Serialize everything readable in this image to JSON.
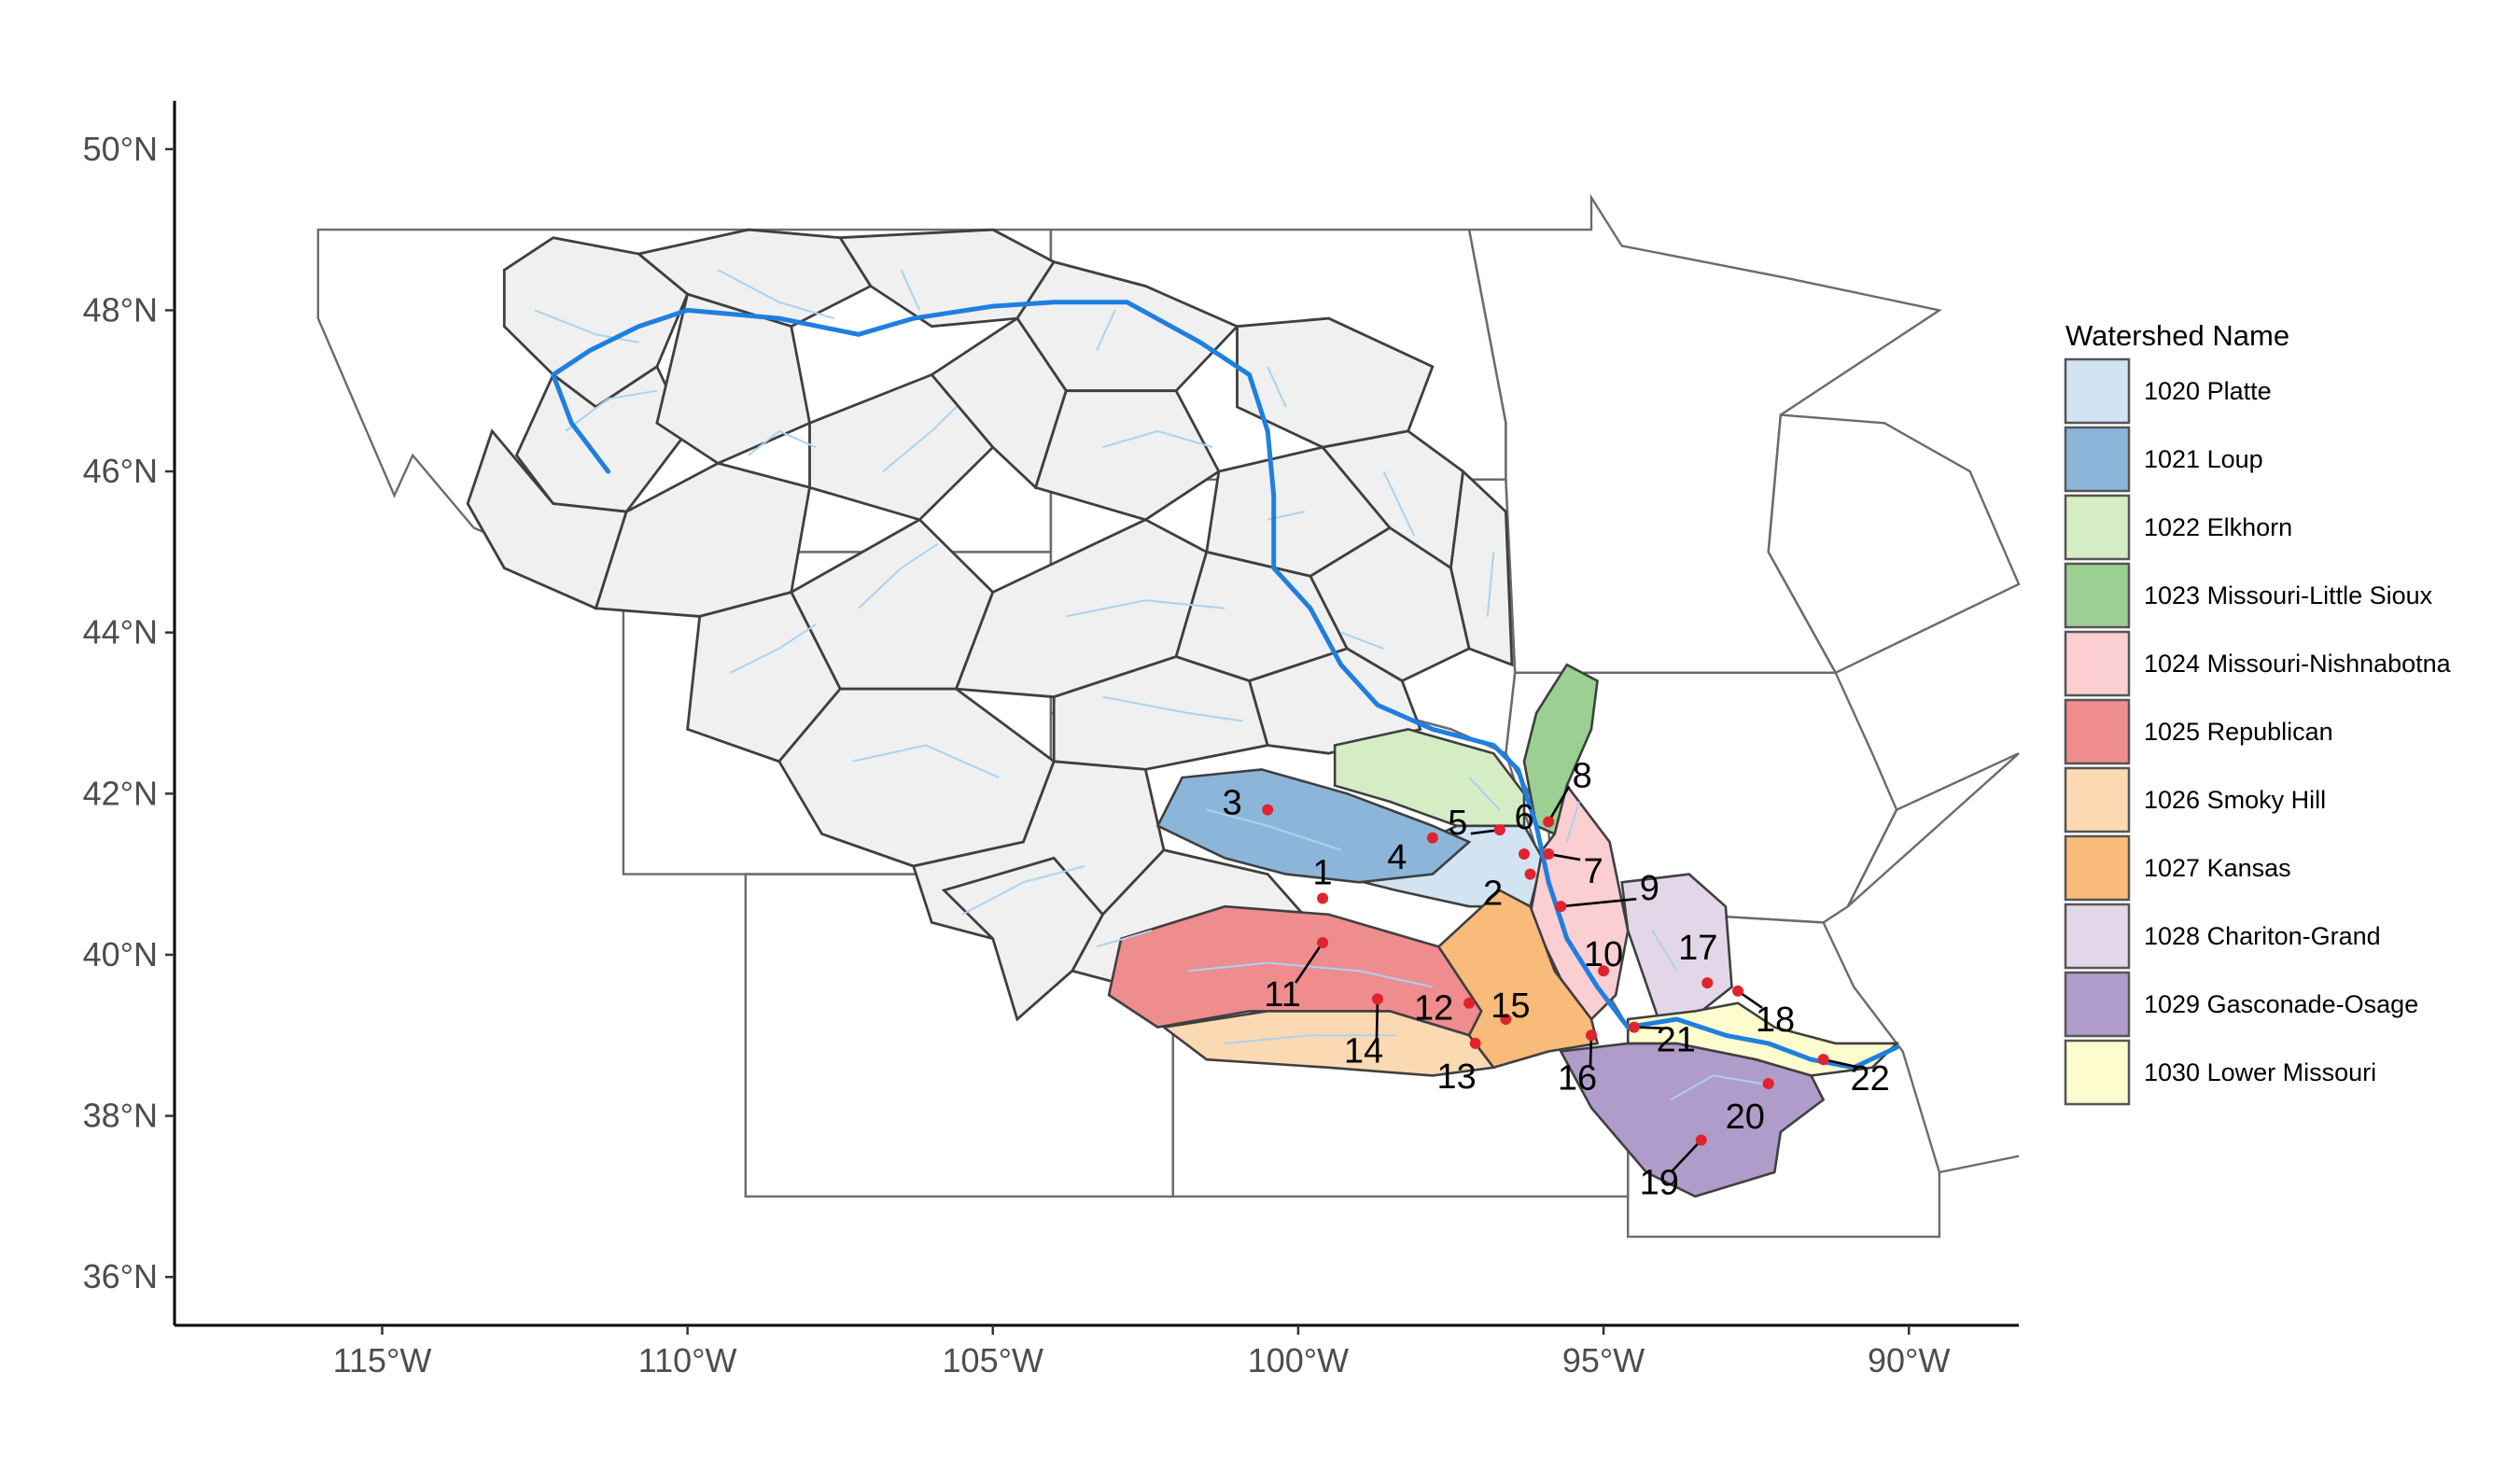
{
  "axes": {
    "lat_ticks": [
      "50°N",
      "48°N",
      "46°N",
      "44°N",
      "42°N",
      "40°N",
      "38°N",
      "36°N"
    ],
    "lon_ticks": [
      "115°W",
      "110°W",
      "105°W",
      "100°W",
      "95°W",
      "90°W"
    ],
    "lat_range": [
      35.4,
      50.6
    ],
    "lon_range": [
      -118.4,
      -88.2
    ]
  },
  "legend": {
    "title": "Watershed Name",
    "entries": [
      {
        "label": "1020 Platte",
        "color": "#d2e4f1"
      },
      {
        "label": "1021 Loup",
        "color": "#8bb6d9"
      },
      {
        "label": "1022 Elkhorn",
        "color": "#d5edc4"
      },
      {
        "label": "1023 Missouri-Little Sioux",
        "color": "#9ccf92"
      },
      {
        "label": "1024 Missouri-Nishnabotna",
        "color": "#fbcfd2"
      },
      {
        "label": "1025 Republican",
        "color": "#ee8c8e"
      },
      {
        "label": "1026 Smoky Hill",
        "color": "#fbd9b3"
      },
      {
        "label": "1027 Kansas",
        "color": "#f9bb7a"
      },
      {
        "label": "1028 Chariton-Grand",
        "color": "#e3d6e8"
      },
      {
        "label": "1029 Gasconade-Osage",
        "color": "#b09ccb"
      },
      {
        "label": "1030 Lower Missouri",
        "color": "#fdfccf"
      }
    ]
  },
  "sites": [
    {
      "id": "1",
      "lon": -99.6,
      "lat": 40.7
    },
    {
      "id": "2",
      "lon": -96.2,
      "lat": 41.0
    },
    {
      "id": "3",
      "lon": -100.5,
      "lat": 41.8
    },
    {
      "id": "4",
      "lon": -97.8,
      "lat": 41.45
    },
    {
      "id": "5",
      "lon": -96.7,
      "lat": 41.55
    },
    {
      "id": "6",
      "lon": -96.3,
      "lat": 41.25
    },
    {
      "id": "7",
      "lon": -95.9,
      "lat": 41.25
    },
    {
      "id": "8",
      "lon": -95.9,
      "lat": 41.65
    },
    {
      "id": "9",
      "lon": -95.7,
      "lat": 40.6
    },
    {
      "id": "10",
      "lon": -95.0,
      "lat": 39.8
    },
    {
      "id": "11",
      "lon": -99.6,
      "lat": 40.15
    },
    {
      "id": "12",
      "lon": -97.2,
      "lat": 39.4
    },
    {
      "id": "13",
      "lon": -97.1,
      "lat": 38.9
    },
    {
      "id": "14",
      "lon": -98.7,
      "lat": 39.45
    },
    {
      "id": "15",
      "lon": -96.6,
      "lat": 39.2
    },
    {
      "id": "16",
      "lon": -95.2,
      "lat": 39.0
    },
    {
      "id": "17",
      "lon": -93.3,
      "lat": 39.65
    },
    {
      "id": "18",
      "lon": -92.8,
      "lat": 39.55
    },
    {
      "id": "19",
      "lon": -93.4,
      "lat": 37.7
    },
    {
      "id": "20",
      "lon": -92.3,
      "lat": 38.4
    },
    {
      "id": "21",
      "lon": -94.5,
      "lat": 39.1
    },
    {
      "id": "22",
      "lon": -91.4,
      "lat": 38.7
    }
  ]
}
